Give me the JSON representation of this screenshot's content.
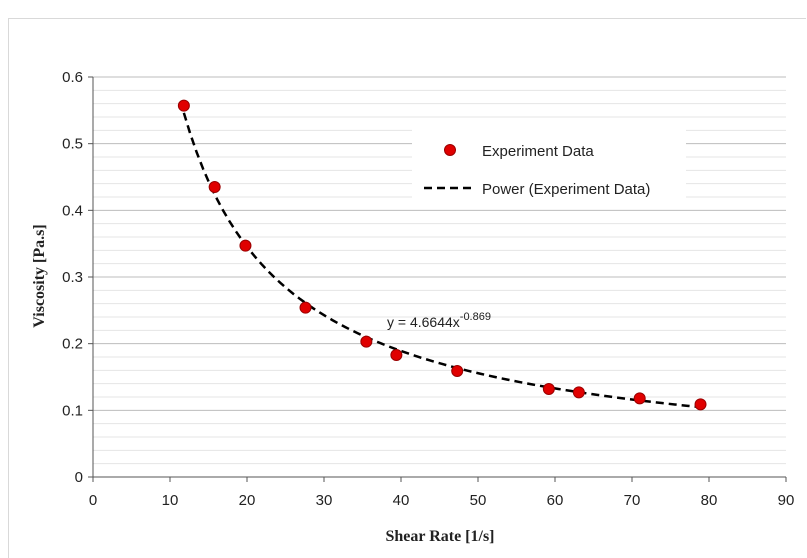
{
  "chart_data": {
    "type": "scatter",
    "xlabel": "Shear Rate [1/s]",
    "ylabel": "Viscosity [Pa.s]",
    "xlim": [
      0,
      90
    ],
    "ylim": [
      0,
      0.6
    ],
    "x_ticks": [
      "0",
      "10",
      "20",
      "30",
      "40",
      "50",
      "60",
      "70",
      "80",
      "90"
    ],
    "y_ticks": [
      "0",
      "0.1",
      "0.2",
      "0.3",
      "0.4",
      "0.5",
      "0.6"
    ],
    "grid": true,
    "legend_position": "top-right",
    "series": [
      {
        "name": "Experiment Data",
        "kind": "scatter",
        "color": "#e00000",
        "x": [
          11.8,
          15.8,
          19.8,
          27.6,
          35.5,
          39.4,
          47.3,
          59.2,
          63.1,
          71.0,
          78.9
        ],
        "y": [
          0.557,
          0.435,
          0.347,
          0.254,
          0.203,
          0.183,
          0.159,
          0.132,
          0.127,
          0.118,
          0.109
        ]
      },
      {
        "name": "Power (Experiment Data)",
        "kind": "trendline",
        "color": "#000000",
        "model": "power",
        "coefficient": 4.6644,
        "exponent": -0.869,
        "x_range": [
          11.8,
          78.9
        ]
      }
    ],
    "annotation": {
      "prefix": "y = 4.6644x",
      "superscript": "-0.869"
    }
  }
}
